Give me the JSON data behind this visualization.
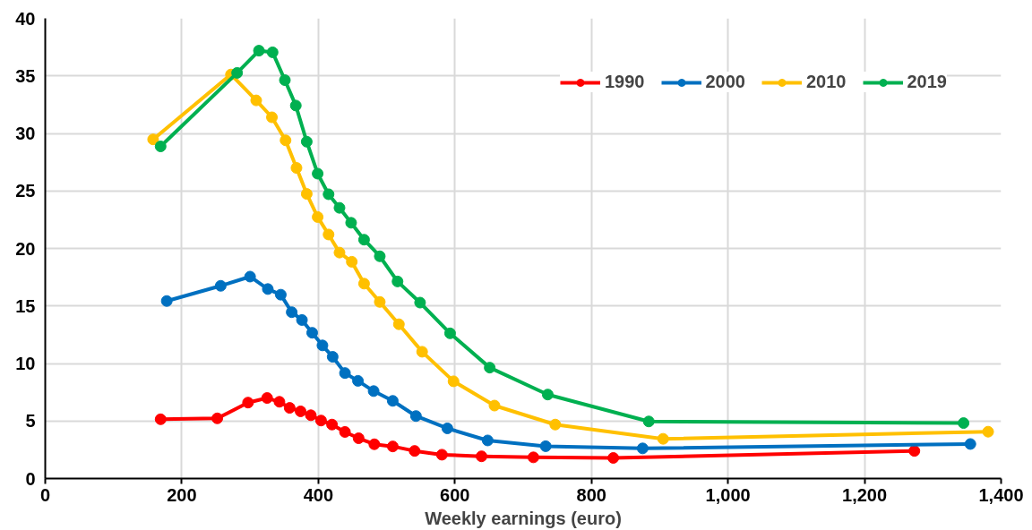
{
  "chart_data": {
    "type": "line",
    "xlabel": "Weekly earnings (euro)",
    "xlim": [
      0,
      1400
    ],
    "ylim": [
      0,
      40
    ],
    "xticks": [
      0,
      200,
      400,
      600,
      800,
      {
        "value": 1000,
        "label": "1,000"
      },
      {
        "value": 1200,
        "label": "1,200"
      },
      {
        "value": 1400,
        "label": "1,400"
      }
    ],
    "yticks": [
      0,
      5,
      10,
      15,
      20,
      25,
      30,
      35,
      40
    ],
    "grid": true,
    "legend": "top right",
    "marker": "circle",
    "line_style": "solid",
    "series": [
      {
        "name": "1990",
        "color": "#ff0000",
        "x": [
          169,
          252,
          297,
          325,
          343,
          358,
          374,
          389,
          404,
          420,
          439,
          459,
          482,
          509,
          541,
          581,
          639,
          715,
          832,
          1273
        ],
        "values": [
          5.15,
          5.23,
          6.6,
          7.0,
          6.67,
          6.14,
          5.84,
          5.5,
          5.04,
          4.69,
          4.05,
          3.5,
          2.98,
          2.79,
          2.4,
          2.07,
          1.93,
          1.84,
          1.79,
          2.4
        ]
      },
      {
        "name": "2000",
        "color": "#0070c0",
        "x": [
          178,
          257,
          300,
          326,
          345,
          361,
          376,
          391,
          406,
          421,
          439,
          458,
          481,
          509,
          543,
          589,
          648,
          733,
          875,
          1355
        ],
        "values": [
          15.43,
          16.75,
          17.55,
          16.47,
          15.98,
          14.46,
          13.78,
          12.67,
          11.57,
          10.58,
          9.17,
          8.49,
          7.6,
          6.75,
          5.43,
          4.36,
          3.31,
          2.81,
          2.62,
          3.0
        ]
      },
      {
        "name": "2010",
        "color": "#ffc000",
        "x": [
          158,
          272,
          309,
          332,
          352,
          368,
          383,
          399,
          415,
          431,
          449,
          467,
          490,
          518,
          552,
          598,
          658,
          747,
          905,
          1381
        ],
        "values": [
          29.48,
          35.12,
          32.87,
          31.4,
          29.4,
          27.0,
          24.74,
          22.73,
          21.21,
          19.64,
          18.84,
          16.94,
          15.35,
          13.41,
          11.02,
          8.45,
          6.34,
          4.69,
          3.45,
          4.07
        ]
      },
      {
        "name": "2019",
        "color": "#00b050",
        "x": [
          169,
          281,
          313,
          333,
          351,
          367,
          383,
          399,
          415,
          431,
          448,
          467,
          490,
          516,
          549,
          593,
          651,
          736,
          884,
          1345
        ],
        "values": [
          28.87,
          35.26,
          37.19,
          37.05,
          34.63,
          32.42,
          29.28,
          26.5,
          24.71,
          23.53,
          22.23,
          20.76,
          19.32,
          17.13,
          15.29,
          12.62,
          9.64,
          7.3,
          4.96,
          4.82
        ]
      }
    ]
  }
}
